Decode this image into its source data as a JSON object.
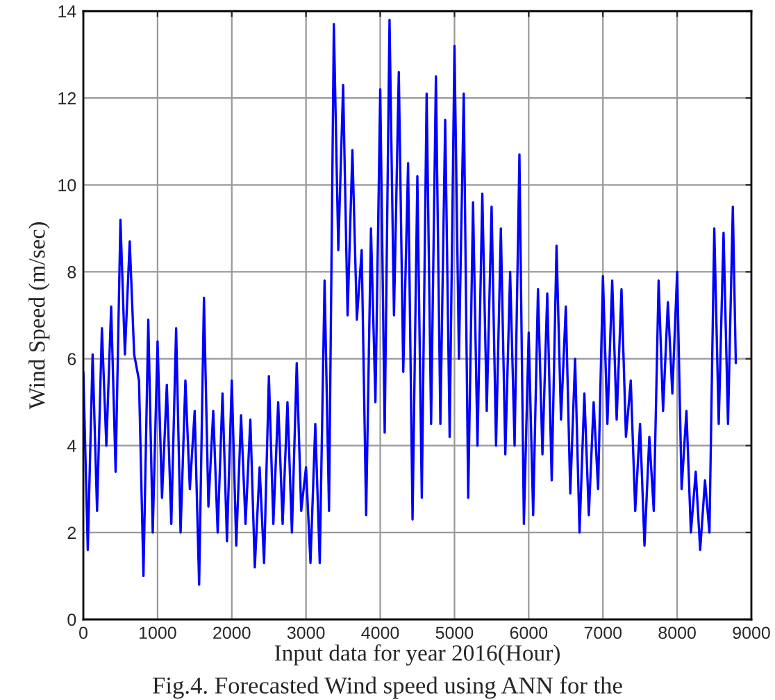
{
  "chart_data": {
    "type": "line",
    "xlabel": "Input data for year 2016(Hour)",
    "ylabel": "Wind Speed (m/sec)",
    "annotations": [
      "Fig.4. Forecasted Wind speed using ANN for the"
    ],
    "xlim": [
      0,
      9000
    ],
    "xticks": [
      0,
      1000,
      2000,
      3000,
      4000,
      5000,
      6000,
      7000,
      8000,
      9000
    ],
    "ylim": [
      0,
      14
    ],
    "yticks": [
      0,
      2,
      4,
      6,
      8,
      10,
      12,
      14
    ],
    "grid": true,
    "line_style": "solid",
    "series": [
      {
        "color": "#0000ff",
        "x": [
          0,
          60,
          125,
          185,
          250,
          310,
          375,
          435,
          500,
          560,
          625,
          685,
          750,
          810,
          875,
          935,
          1000,
          1060,
          1125,
          1185,
          1250,
          1310,
          1375,
          1435,
          1500,
          1560,
          1625,
          1685,
          1750,
          1810,
          1875,
          1935,
          2000,
          2060,
          2125,
          2185,
          2250,
          2310,
          2375,
          2435,
          2500,
          2560,
          2625,
          2685,
          2750,
          2810,
          2875,
          2935,
          3000,
          3060,
          3125,
          3185,
          3250,
          3310,
          3375,
          3435,
          3500,
          3560,
          3625,
          3685,
          3750,
          3810,
          3875,
          3935,
          4000,
          4060,
          4125,
          4185,
          4250,
          4310,
          4375,
          4435,
          4500,
          4560,
          4625,
          4685,
          4750,
          4810,
          4875,
          4935,
          5000,
          5060,
          5125,
          5185,
          5250,
          5310,
          5375,
          5435,
          5500,
          5560,
          5625,
          5685,
          5750,
          5810,
          5875,
          5935,
          6000,
          6060,
          6125,
          6185,
          6250,
          6310,
          6375,
          6435,
          6500,
          6560,
          6625,
          6685,
          6750,
          6810,
          6875,
          6935,
          7000,
          7060,
          7125,
          7185,
          7250,
          7310,
          7375,
          7435,
          7500,
          7560,
          7625,
          7685,
          7750,
          7810,
          7875,
          7935,
          8000,
          8060,
          8125,
          8185,
          8250,
          8310,
          8375,
          8435,
          8500,
          8560,
          8625,
          8685,
          8750,
          8790
        ],
        "values": [
          5.7,
          1.6,
          6.1,
          2.5,
          6.7,
          4.0,
          7.2,
          3.4,
          9.2,
          6.1,
          8.7,
          6.1,
          5.5,
          1.0,
          6.9,
          2.0,
          6.4,
          2.8,
          5.4,
          2.2,
          6.7,
          2.0,
          5.5,
          3.0,
          4.8,
          0.8,
          7.4,
          2.6,
          4.8,
          2.0,
          5.2,
          1.8,
          5.5,
          1.7,
          4.7,
          2.2,
          4.6,
          1.2,
          3.5,
          1.3,
          5.6,
          2.2,
          5.0,
          2.2,
          5.0,
          2.0,
          5.9,
          2.5,
          3.5,
          1.3,
          4.5,
          1.3,
          7.8,
          2.5,
          13.7,
          8.5,
          12.3,
          7.0,
          10.8,
          6.9,
          8.5,
          2.4,
          9.0,
          5.0,
          12.2,
          4.3,
          13.8,
          7.0,
          12.6,
          5.7,
          10.5,
          2.3,
          10.2,
          2.8,
          12.1,
          4.5,
          12.5,
          4.5,
          11.5,
          4.2,
          13.2,
          6.0,
          12.1,
          2.8,
          9.6,
          4.0,
          9.8,
          4.8,
          9.5,
          4.0,
          9.0,
          3.8,
          8.0,
          4.0,
          10.7,
          2.2,
          6.6,
          2.4,
          7.6,
          3.8,
          7.5,
          3.2,
          8.6,
          4.6,
          7.2,
          2.9,
          6.0,
          2.0,
          5.2,
          2.4,
          5.0,
          3.0,
          7.9,
          4.5,
          7.8,
          4.6,
          7.6,
          4.2,
          5.5,
          2.5,
          4.5,
          1.7,
          4.2,
          2.5,
          7.8,
          4.8,
          7.3,
          5.2,
          8.0,
          3.0,
          4.8,
          2.0,
          3.4,
          1.6,
          3.2,
          2.0,
          9.0,
          4.5,
          8.9,
          4.5,
          9.5,
          5.9
        ]
      }
    ]
  }
}
